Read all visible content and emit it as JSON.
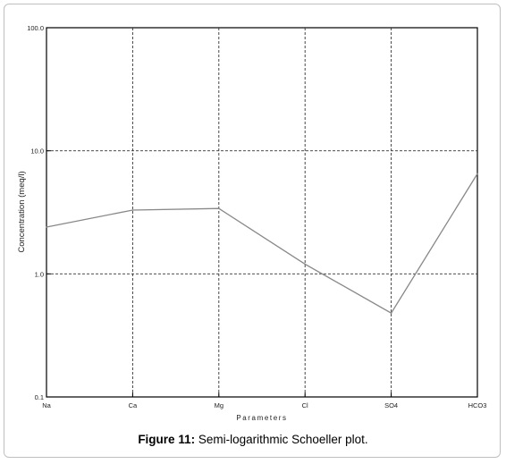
{
  "caption": {
    "label": "Figure 11:",
    "text": " Semi-logarithmic Schoeller plot."
  },
  "chart_data": {
    "type": "line",
    "title": "",
    "xlabel": "Parameters",
    "ylabel": "Concentration (meq/l)",
    "yscale": "log",
    "ylim": [
      0.1,
      100
    ],
    "yticks": [
      0.1,
      1,
      10,
      100
    ],
    "ytick_labels": [
      "0.1",
      "1.0",
      "10.0",
      "100.0"
    ],
    "categories": [
      "Na",
      "Ca",
      "Mg",
      "Cl",
      "SO4",
      "HCO3"
    ],
    "series": [
      {
        "values": [
          2.4,
          3.3,
          3.4,
          1.2,
          0.48,
          6.5
        ]
      }
    ],
    "grid": true,
    "line_color": "#888888"
  }
}
